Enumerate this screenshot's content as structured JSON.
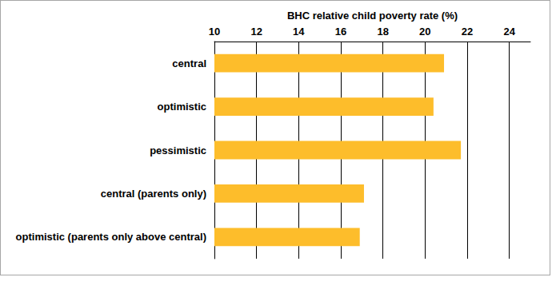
{
  "chart_data": {
    "type": "bar",
    "orientation": "horizontal",
    "x_label": "BHC relative child poverty rate (%)",
    "categories": [
      "central",
      "optimistic",
      "pessimistic",
      "central (parents only)",
      "optimistic (parents only above central)"
    ],
    "values": [
      20.9,
      20.4,
      21.7,
      17.1,
      16.9
    ],
    "color": "#fdbd2b",
    "xlim": [
      10,
      25
    ],
    "xticks": [
      10,
      12,
      14,
      16,
      18,
      20,
      22,
      24
    ],
    "grid": true
  }
}
